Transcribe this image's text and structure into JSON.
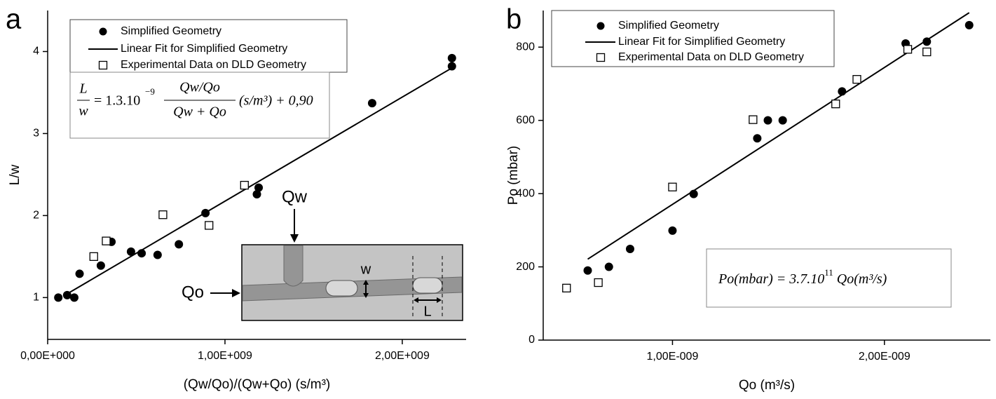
{
  "chart_data": [
    {
      "type": "scatter",
      "panel_label": "a",
      "x_label": "(Qw/Qo)/(Qw+Qo) (s/m³)",
      "y_label": "L/w",
      "xlim": [
        0,
        2360000000.0
      ],
      "ylim": [
        0.49,
        4.5
      ],
      "xticks": [
        {
          "value": 0,
          "label": "0,00E+000"
        },
        {
          "value": 1000000000.0,
          "label": "1,00E+009"
        },
        {
          "value": 2000000000.0,
          "label": "2,00E+009"
        }
      ],
      "yticks": [
        1,
        2,
        3,
        4
      ],
      "series": [
        {
          "name": "Simplified Geometry",
          "color": "#000000",
          "marker": "circle",
          "x": [
            60000000.0,
            110000000.0,
            150000000.0,
            180000000.0,
            300000000.0,
            360000000.0,
            470000000.0,
            530000000.0,
            620000000.0,
            740000000.0,
            890000000.0,
            1180000000.0,
            1190000000.0,
            1830000000.0,
            2280000000.0,
            2280000000.0
          ],
          "values": [
            1.0,
            1.03,
            1.0,
            1.29,
            1.39,
            1.68,
            1.56,
            1.54,
            1.52,
            1.65,
            2.03,
            2.26,
            2.34,
            3.37,
            3.92,
            3.82
          ]
        },
        {
          "name": "Linear Fit for Simplified Geometry",
          "color": "#000000",
          "marker": "line",
          "x": [
            90000000.0,
            2280000000.0
          ],
          "values": [
            1.02,
            3.8
          ]
        },
        {
          "name": "Experimental Data on DLD Geometry",
          "color": "#000000",
          "marker": "square",
          "x": [
            260000000.0,
            330000000.0,
            650000000.0,
            910000000.0,
            1110000000.0
          ],
          "values": [
            1.5,
            1.69,
            2.01,
            1.88,
            2.37
          ]
        }
      ],
      "equation": {
        "lhs_num": "L",
        "lhs_den": "w",
        "mid": "= 1.3.10",
        "exp": "−9",
        "frac_num": "Qw/Qo",
        "frac_den": "Qw + Qo",
        "tail": "(s/m³) + 0,90"
      },
      "inset": {
        "qw": "Qw",
        "qo": "Qo",
        "w": "w",
        "l": "L"
      }
    },
    {
      "type": "scatter",
      "panel_label": "b",
      "x_label": "Qo (m³/s)",
      "y_label": "Po (mbar)",
      "xlim": [
        3.9e-10,
        2.5e-09
      ],
      "ylim": [
        0,
        900
      ],
      "xticks": [
        {
          "value": 1e-09,
          "label": "1,00E-009"
        },
        {
          "value": 2e-09,
          "label": "2,00E-009"
        }
      ],
      "yticks": [
        0,
        200,
        400,
        600,
        800
      ],
      "series": [
        {
          "name": "Simplified Geometry",
          "color": "#000000",
          "marker": "circle",
          "x": [
            6e-10,
            7e-10,
            8e-10,
            1e-09,
            1.1e-09,
            1.4e-09,
            1.45e-09,
            1.52e-09,
            1.8e-09,
            2.1e-09,
            2.2e-09,
            2.4e-09
          ],
          "values": [
            190,
            200,
            249,
            299,
            399,
            551,
            600,
            600,
            679,
            810,
            815,
            860
          ]
        },
        {
          "name": "Linear Fit for Simplified Geometry",
          "color": "#000000",
          "marker": "line",
          "x": [
            6e-10,
            2.4e-09
          ],
          "values": [
            221,
            894
          ]
        },
        {
          "name": "Experimental Data on DLD Geometry",
          "color": "#000000",
          "marker": "square",
          "x": [
            5e-10,
            6.5e-10,
            1e-09,
            1.38e-09,
            1.77e-09,
            1.87e-09,
            2.11e-09,
            2.2e-09
          ],
          "values": [
            142,
            157,
            418,
            602,
            645,
            712,
            794,
            787
          ]
        }
      ],
      "equation": {
        "lhs": "Po(mbar) = 3.7.10",
        "exp": "11",
        "rhs": " Qo(m³/s)"
      }
    }
  ]
}
